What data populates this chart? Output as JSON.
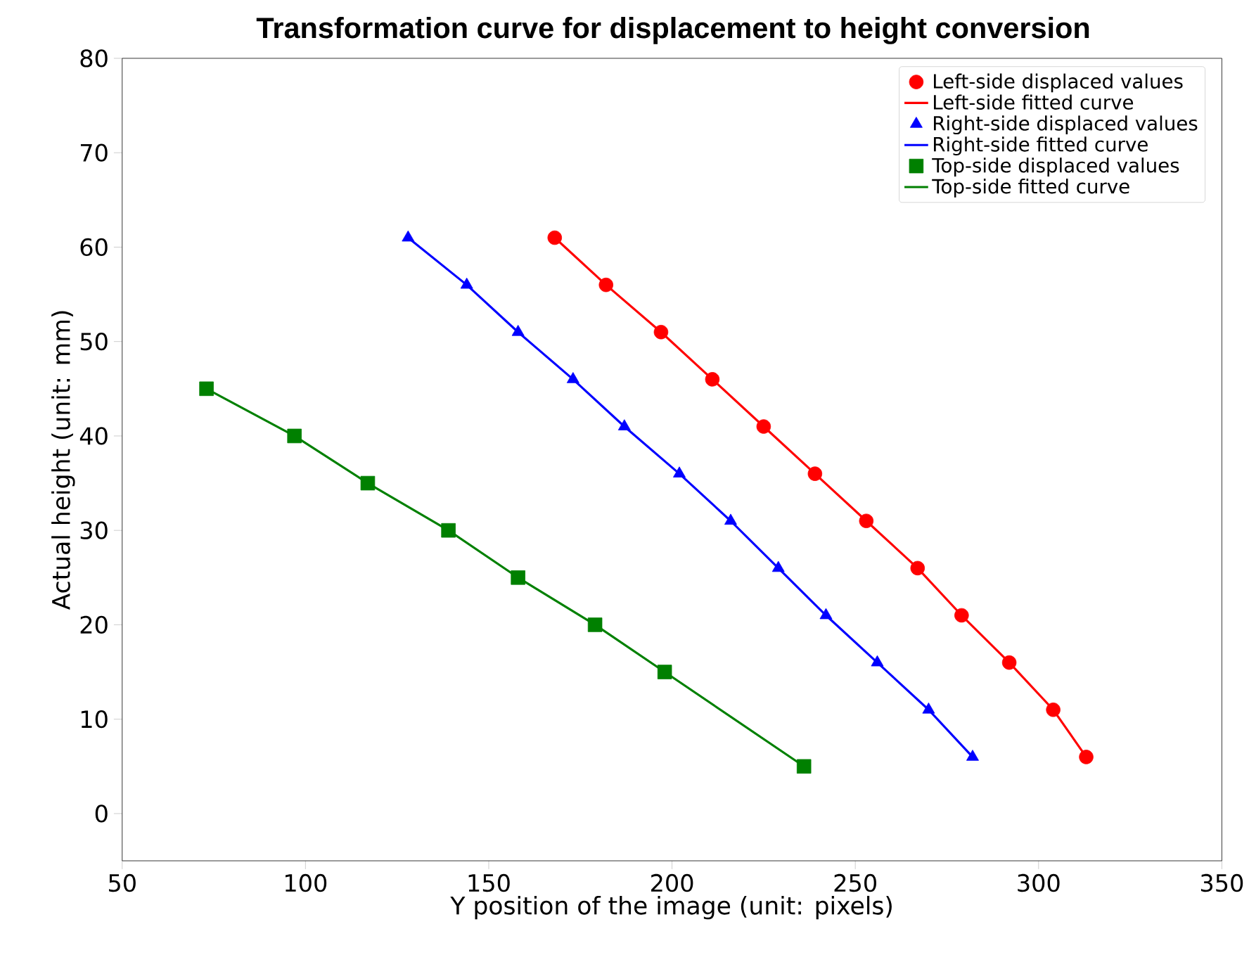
{
  "chart_data": {
    "type": "scatter",
    "title": "Transformation curve for displacement to height conversion",
    "xlabel": "Y position of the image (unit: pixels)",
    "ylabel": "Actual height (unit: mm)",
    "xlim": [
      50,
      350
    ],
    "ylim": [
      -5,
      80
    ],
    "xticks": [
      50,
      100,
      150,
      200,
      250,
      300,
      350
    ],
    "yticks": [
      0,
      10,
      20,
      30,
      40,
      50,
      60,
      70,
      80
    ],
    "grid": false,
    "legend": "top right",
    "series": [
      {
        "name": "Left-side displaced values",
        "marker": "circle",
        "color": "#ff0000",
        "x": [
          168,
          182,
          197,
          211,
          225,
          239,
          253,
          267,
          279,
          292,
          304,
          313
        ],
        "values": [
          61,
          56,
          51,
          46,
          41,
          36,
          31,
          26,
          21,
          16,
          11,
          6
        ]
      },
      {
        "name": "Left-side fitted curve",
        "type": "line",
        "color": "#ff0000",
        "x": [
          168,
          182,
          197,
          211,
          225,
          239,
          253,
          267,
          279,
          292,
          304,
          313
        ],
        "values": [
          61,
          56,
          51,
          46,
          41,
          36,
          31,
          26,
          21,
          16,
          11,
          6
        ]
      },
      {
        "name": "Right-side displaced values",
        "marker": "triangle",
        "color": "#0000ff",
        "x": [
          128,
          144,
          158,
          173,
          187,
          202,
          216,
          229,
          242,
          256,
          270,
          282
        ],
        "values": [
          61,
          56,
          51,
          46,
          41,
          36,
          31,
          26,
          21,
          16,
          11,
          6
        ]
      },
      {
        "name": "Right-side fitted curve",
        "type": "line",
        "color": "#0000ff",
        "x": [
          128,
          144,
          158,
          173,
          187,
          202,
          216,
          229,
          242,
          256,
          270,
          282
        ],
        "values": [
          61,
          56,
          51,
          46,
          41,
          36,
          31,
          26,
          21,
          16,
          11,
          6
        ]
      },
      {
        "name": "Top-side displaced values",
        "marker": "square",
        "color": "#008000",
        "x": [
          73,
          97,
          117,
          139,
          158,
          179,
          198,
          236
        ],
        "values": [
          45,
          40,
          35,
          30,
          25,
          20,
          15,
          5
        ]
      },
      {
        "name": "Top-side fitted curve",
        "type": "line",
        "color": "#008000",
        "x": [
          73,
          97,
          117,
          139,
          158,
          179,
          198,
          236
        ],
        "values": [
          45,
          40,
          35,
          30,
          25,
          20,
          15,
          5
        ]
      }
    ]
  }
}
